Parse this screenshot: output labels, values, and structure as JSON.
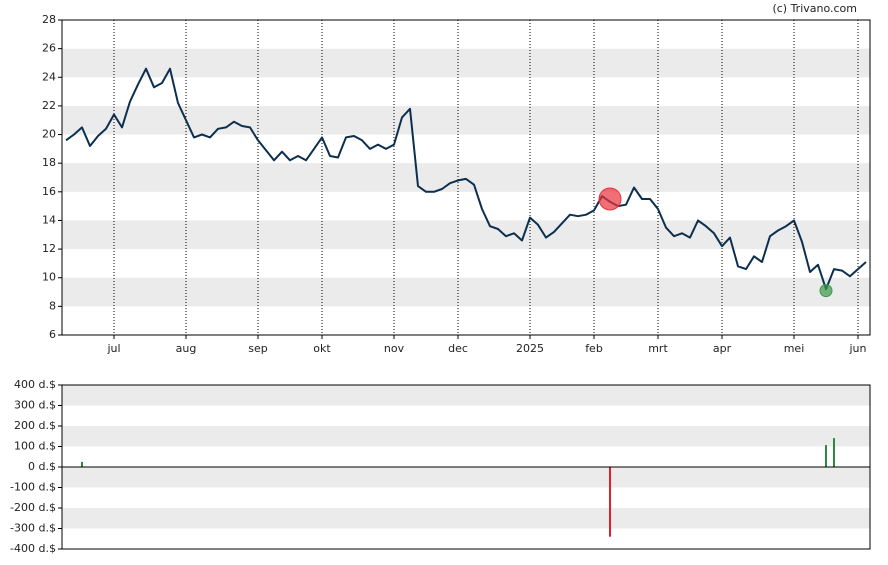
{
  "credit": "(c) Trivano.com",
  "chart_data": [
    {
      "type": "line",
      "categories": [
        null,
        null,
        null,
        null,
        null,
        null,
        "jul",
        null,
        null,
        null,
        null,
        null,
        null,
        null,
        null,
        "aug",
        null,
        null,
        null,
        null,
        null,
        null,
        null,
        null,
        "sep",
        null,
        null,
        null,
        null,
        null,
        null,
        null,
        "okt",
        null,
        null,
        null,
        null,
        null,
        null,
        null,
        null,
        "nov",
        null,
        null,
        null,
        null,
        null,
        null,
        null,
        "dec",
        null,
        null,
        null,
        null,
        null,
        null,
        null,
        null,
        "2025",
        null,
        null,
        null,
        null,
        null,
        null,
        null,
        "feb",
        null,
        null,
        null,
        null,
        null,
        null,
        null,
        "mrt",
        null,
        null,
        null,
        null,
        null,
        null,
        null,
        "apr",
        null,
        null,
        null,
        null,
        null,
        null,
        null,
        null,
        "mei",
        null,
        null,
        null,
        null,
        null,
        null,
        null,
        "jun",
        null
      ],
      "series": [
        {
          "color": "#0d2f4f",
          "values": [
            19.6,
            20.0,
            20.5,
            19.2,
            19.9,
            20.4,
            21.4,
            20.5,
            22.3,
            23.5,
            24.6,
            23.3,
            23.6,
            24.6,
            22.2,
            21.0,
            19.8,
            20.0,
            19.8,
            20.4,
            20.5,
            20.9,
            20.6,
            20.5,
            19.6,
            18.9,
            18.2,
            18.8,
            18.2,
            18.5,
            18.2,
            19.0,
            19.8,
            18.5,
            18.4,
            19.8,
            19.9,
            19.6,
            19.0,
            19.3,
            19.0,
            19.3,
            21.2,
            21.8,
            16.4,
            16.0,
            16.0,
            16.2,
            16.6,
            16.8,
            16.9,
            16.5,
            14.8,
            13.6,
            13.4,
            12.9,
            13.1,
            12.6,
            14.2,
            13.7,
            12.8,
            13.2,
            13.8,
            14.4,
            14.3,
            14.4,
            14.7,
            15.7,
            15.3,
            15.0,
            15.1,
            16.3,
            15.5,
            15.5,
            14.8,
            13.5,
            12.9,
            13.1,
            12.8,
            14.0,
            13.6,
            13.1,
            12.2,
            12.8,
            10.8,
            10.6,
            11.5,
            11.1,
            12.9,
            13.3,
            13.6,
            14.0,
            12.5,
            10.4,
            10.9,
            9.2,
            10.6,
            10.5,
            10.1,
            10.6,
            11.1
          ]
        },
        {
          "type": "marker",
          "color": "#e8323c",
          "values": [
            null,
            null,
            null,
            null,
            null,
            null,
            null,
            null,
            null,
            null,
            null,
            null,
            null,
            null,
            null,
            null,
            null,
            null,
            null,
            null,
            null,
            null,
            null,
            null,
            null,
            null,
            null,
            null,
            null,
            null,
            null,
            null,
            null,
            null,
            null,
            null,
            null,
            null,
            null,
            null,
            null,
            null,
            null,
            null,
            null,
            null,
            null,
            null,
            null,
            null,
            null,
            null,
            null,
            null,
            null,
            null,
            null,
            null,
            null,
            null,
            null,
            null,
            null,
            null,
            null,
            null,
            null,
            null,
            15.5,
            null,
            null,
            null,
            null,
            null,
            null,
            null,
            null,
            null,
            null,
            null,
            null,
            null,
            null,
            null,
            null,
            null,
            null,
            null,
            null,
            null,
            null,
            null,
            null,
            null,
            null,
            null,
            null,
            null,
            null,
            null,
            null
          ]
        },
        {
          "type": "marker",
          "color": "#3c9a4a",
          "values": [
            null,
            null,
            null,
            null,
            null,
            null,
            null,
            null,
            null,
            null,
            null,
            null,
            null,
            null,
            null,
            null,
            null,
            null,
            null,
            null,
            null,
            null,
            null,
            null,
            null,
            null,
            null,
            null,
            null,
            null,
            null,
            null,
            null,
            null,
            null,
            null,
            null,
            null,
            null,
            null,
            null,
            null,
            null,
            null,
            null,
            null,
            null,
            null,
            null,
            null,
            null,
            null,
            null,
            null,
            null,
            null,
            null,
            null,
            null,
            null,
            null,
            null,
            null,
            null,
            null,
            null,
            null,
            null,
            null,
            null,
            null,
            null,
            null,
            null,
            null,
            null,
            null,
            null,
            null,
            null,
            null,
            null,
            null,
            null,
            null,
            null,
            null,
            null,
            null,
            null,
            null,
            null,
            null,
            null,
            null,
            9.1,
            null,
            null,
            null,
            null,
            null
          ]
        }
      ],
      "ylim": [
        6,
        28
      ],
      "yticks": [
        6,
        8,
        10,
        12,
        14,
        16,
        18,
        20,
        22,
        24,
        26,
        28
      ],
      "grid": true
    },
    {
      "type": "bar",
      "values": [
        null,
        null,
        25,
        null,
        null,
        null,
        null,
        null,
        null,
        null,
        null,
        null,
        null,
        null,
        null,
        null,
        null,
        null,
        null,
        null,
        null,
        null,
        null,
        null,
        null,
        null,
        null,
        null,
        null,
        null,
        null,
        null,
        null,
        null,
        null,
        null,
        null,
        null,
        null,
        null,
        null,
        null,
        null,
        null,
        null,
        null,
        null,
        null,
        null,
        null,
        null,
        null,
        null,
        null,
        null,
        null,
        null,
        null,
        null,
        null,
        null,
        null,
        null,
        null,
        null,
        null,
        null,
        null,
        -340,
        null,
        null,
        null,
        null,
        null,
        null,
        null,
        null,
        null,
        null,
        null,
        null,
        null,
        null,
        null,
        null,
        null,
        null,
        null,
        null,
        null,
        null,
        null,
        null,
        null,
        null,
        107,
        141,
        null,
        null,
        null,
        null
      ],
      "positive_color": "#2e8b3e",
      "negative_color": "#e0202a",
      "ylim": [
        -400,
        400
      ],
      "yticks": [
        {
          "value": -400,
          "label": "-400 d.$"
        },
        {
          "value": -300,
          "label": "-300 d.$"
        },
        {
          "value": -200,
          "label": "-200 d.$"
        },
        {
          "value": -100,
          "label": "-100 d.$"
        },
        {
          "value": 0,
          "label": "0 d.$"
        },
        {
          "value": 100,
          "label": "100 d.$"
        },
        {
          "value": 200,
          "label": "200 d.$"
        },
        {
          "value": 300,
          "label": "300 d.$"
        },
        {
          "value": 400,
          "label": "400 d.$"
        }
      ],
      "grid": true
    }
  ]
}
